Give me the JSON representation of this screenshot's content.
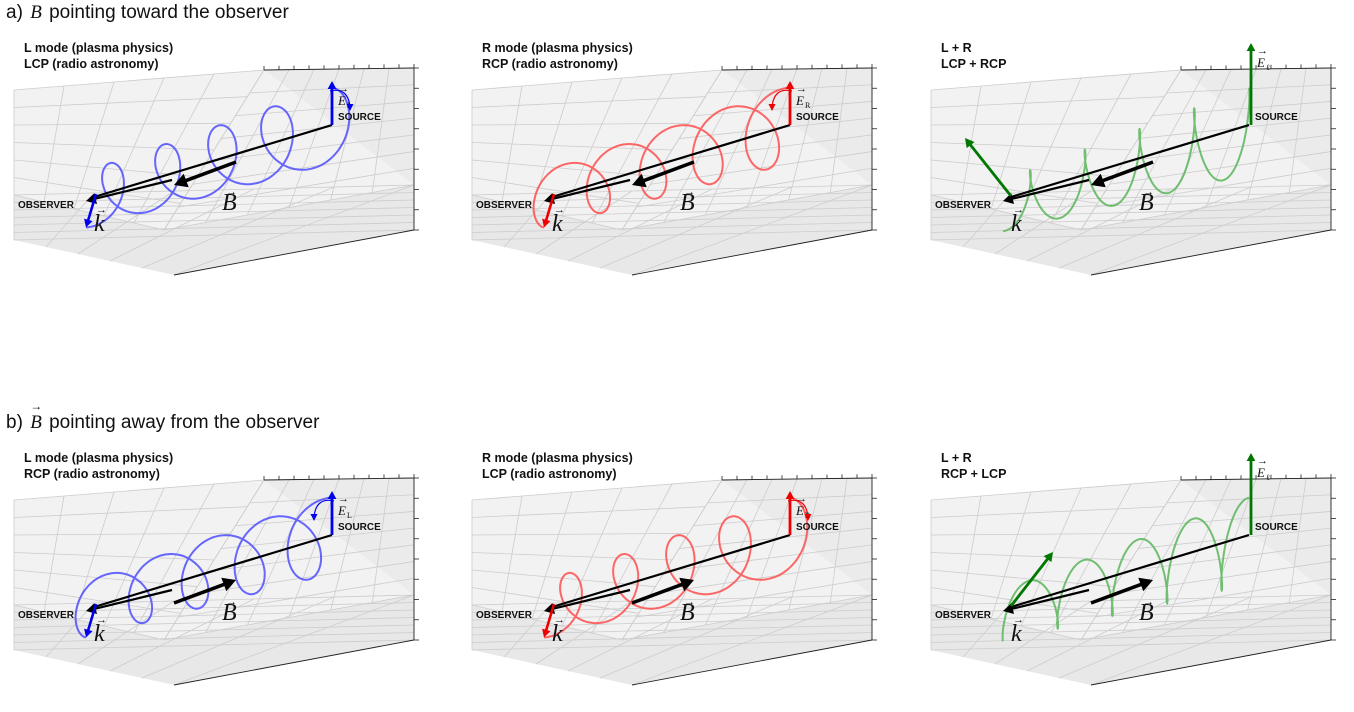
{
  "rows": [
    {
      "id": "a",
      "title_prefix": "a) ",
      "title_symbol": "B",
      "title_suffix": " pointing toward the observer",
      "panels": [
        {
          "line1": "L mode (plasma physics)",
          "line2": "LCP (radio astronomy)",
          "kind": "L",
          "b_direction": "toward-observer",
          "field_label": "E",
          "field_subscript": "L",
          "color": "#4d4dff"
        },
        {
          "line1": "R mode (plasma physics)",
          "line2": "RCP (radio astronomy)",
          "kind": "R",
          "b_direction": "toward-observer",
          "field_label": "E",
          "field_subscript": "R",
          "color": "#ff4d4d"
        },
        {
          "line1": "L + R",
          "line2": "LCP + RCP",
          "kind": "LR",
          "b_direction": "toward-observer",
          "field_label": "E",
          "field_subscript": "ℓ",
          "color": "#5bb55b"
        }
      ]
    },
    {
      "id": "b",
      "title_prefix": "b) ",
      "title_symbol": "B",
      "title_suffix": " pointing away from the observer",
      "panels": [
        {
          "line1": "L mode (plasma physics)",
          "line2": "RCP (radio astronomy)",
          "kind": "L",
          "b_direction": "away-from-observer",
          "field_label": "E",
          "field_subscript": "L",
          "color": "#4d4dff"
        },
        {
          "line1": "R mode (plasma physics)",
          "line2": "LCP (radio astronomy)",
          "kind": "R",
          "b_direction": "away-from-observer",
          "field_label": "E",
          "field_subscript": "R",
          "color": "#ff4d4d"
        },
        {
          "line1": "L + R",
          "line2": "RCP + LCP",
          "kind": "LR",
          "b_direction": "away-from-observer",
          "field_label": "E",
          "field_subscript": "ℓ",
          "color": "#5bb55b"
        }
      ]
    }
  ],
  "labels": {
    "source": "SOURCE",
    "observer": "OBSERVER",
    "k": "k",
    "B": "B"
  },
  "colors": {
    "L": "#4d4dff",
    "L_arrow": "#0000ee",
    "R": "#ff4d4d",
    "R_arrow": "#ee0000",
    "LR": "#5bb55b",
    "LR_arrow": "#007700",
    "axis": "#000000",
    "grid": "#cccccc",
    "pane": "#f2f2f2"
  }
}
